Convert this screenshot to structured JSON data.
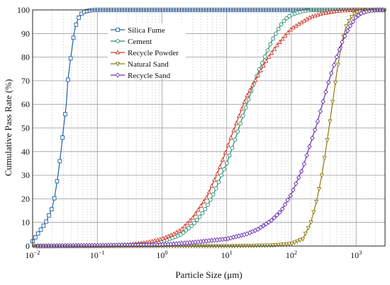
{
  "chart_data": {
    "type": "line",
    "xlabel": "Particle Size (μm)",
    "ylabel": "Cumulative Pass Rate  (%)",
    "x_scale": "log",
    "xlim": [
      0.01,
      2800
    ],
    "ylim": [
      0,
      100
    ],
    "x_ticks": [
      {
        "value": 0.01,
        "base": "10",
        "exp": "−2"
      },
      {
        "value": 0.1,
        "base": "10",
        "exp": "−1"
      },
      {
        "value": 1,
        "base": "10",
        "exp": "0"
      },
      {
        "value": 10,
        "base": "10",
        "exp": "1"
      },
      {
        "value": 100,
        "base": "10",
        "exp": "2"
      },
      {
        "value": 1000,
        "base": "10",
        "exp": "3"
      }
    ],
    "y_ticks": [
      0,
      10,
      20,
      30,
      40,
      50,
      60,
      70,
      80,
      90,
      100
    ],
    "grid": true,
    "legend_position": "top-left",
    "series": [
      {
        "name": "Silica Fume",
        "color": "#1f5fa8",
        "marker": "square",
        "x": [
          0.01,
          0.016,
          0.02,
          0.022,
          0.025,
          0.028,
          0.03,
          0.033,
          0.035,
          0.038,
          0.04,
          0.043,
          0.046,
          0.05,
          0.055,
          0.06,
          0.07,
          0.08,
          0.1,
          0.15,
          0.3,
          1,
          10,
          100,
          1000,
          2800
        ],
        "y": [
          2,
          10,
          16,
          21,
          31,
          42,
          50,
          59,
          70,
          78,
          82,
          89,
          93,
          96,
          98,
          99,
          99.6,
          99.9,
          100,
          100,
          100,
          100,
          100,
          100,
          100,
          100
        ]
      },
      {
        "name": "Cement",
        "color": "#1e8a70",
        "marker": "circle",
        "x": [
          0.01,
          0.1,
          0.3,
          0.6,
          1,
          1.5,
          2,
          3,
          4,
          5,
          6,
          7,
          8,
          10,
          12,
          15,
          20,
          25,
          30,
          40,
          50,
          60,
          70,
          80,
          100,
          150,
          200,
          300,
          500,
          1000,
          2800
        ],
        "y": [
          0,
          0,
          0.3,
          1,
          2,
          3.5,
          5,
          9,
          13,
          17,
          21,
          25,
          29,
          35,
          41,
          49,
          59,
          67,
          73,
          81,
          87,
          91,
          94,
          96,
          98,
          99.5,
          100,
          100,
          100,
          100,
          100
        ]
      },
      {
        "name": "Recycle Powder",
        "color": "#d03a2c",
        "marker": "triangle-up",
        "x": [
          0.01,
          0.1,
          0.3,
          0.6,
          1,
          1.5,
          2,
          3,
          4,
          5,
          6,
          7,
          8,
          10,
          12,
          15,
          20,
          25,
          30,
          40,
          50,
          60,
          80,
          100,
          150,
          200,
          300,
          500,
          700,
          1000,
          1500,
          2800
        ],
        "y": [
          0,
          0,
          0.5,
          1.5,
          3,
          5,
          7,
          12,
          17,
          21,
          26,
          30,
          34,
          41,
          47,
          54,
          63,
          68,
          72,
          78,
          82,
          85,
          89,
          92,
          95,
          97,
          98.5,
          99.5,
          99.8,
          100,
          100,
          100
        ]
      },
      {
        "name": "Natural Sand",
        "color": "#8a7a10",
        "marker": "triangle-down",
        "x": [
          0.01,
          1,
          10,
          50,
          100,
          150,
          200,
          250,
          300,
          350,
          400,
          450,
          500,
          550,
          600,
          700,
          800,
          900,
          1000,
          1200,
          1500,
          2000,
          2800
        ],
        "y": [
          0,
          0,
          0,
          0.3,
          1,
          3,
          10,
          20,
          31,
          43,
          54,
          64,
          73,
          80,
          86,
          93,
          96,
          98,
          99,
          99.5,
          100,
          100,
          100
        ]
      },
      {
        "name": "Recycle Sand",
        "color": "#6a2fb0",
        "marker": "diamond",
        "x": [
          0.01,
          1,
          3,
          10,
          20,
          30,
          50,
          70,
          100,
          150,
          200,
          250,
          300,
          400,
          500,
          600,
          700,
          800,
          1000,
          1200,
          1500,
          2000,
          2800
        ],
        "y": [
          0,
          0.5,
          1.5,
          3,
          5,
          7,
          11,
          15,
          22,
          33,
          44,
          52,
          60,
          72,
          80,
          86,
          90,
          93,
          97,
          98.5,
          99.5,
          100,
          100
        ]
      }
    ]
  }
}
